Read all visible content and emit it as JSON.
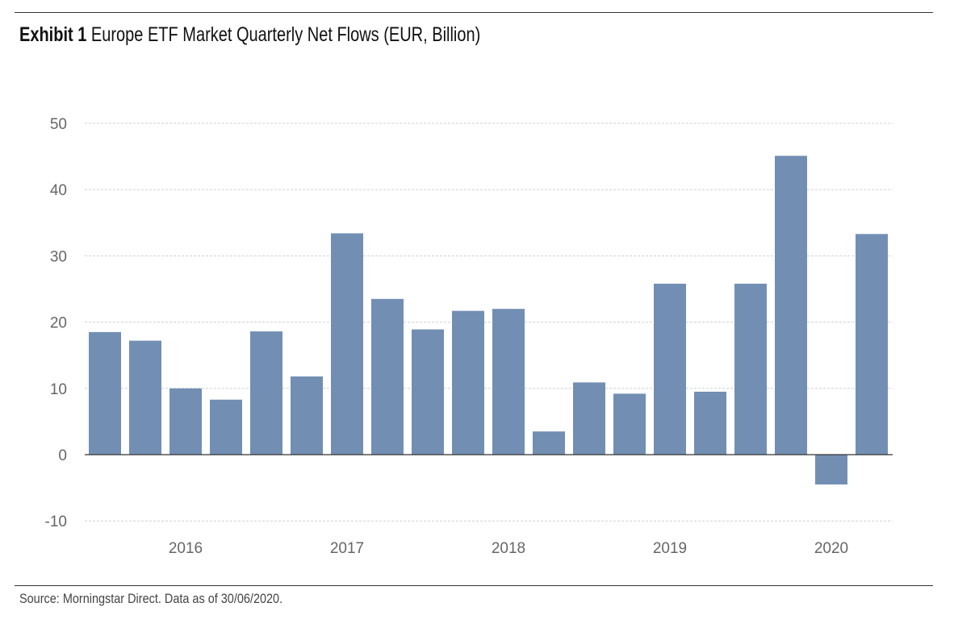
{
  "title": {
    "exhibit": "Exhibit 1",
    "text": "Europe ETF Market Quarterly Net Flows (EUR, Billion)"
  },
  "source": "Source: Morningstar Direct. Data as of 30/06/2020.",
  "chart_data": {
    "type": "bar",
    "title": "Europe ETF Market Quarterly Net Flows (EUR, Billion)",
    "xlabel": "",
    "ylabel": "",
    "ylim": [
      -10,
      50
    ],
    "yticks": [
      "-10",
      "0",
      "10",
      "20",
      "30",
      "40",
      "50"
    ],
    "grid": true,
    "bar_color": "#728fb3",
    "values": [
      18.5,
      17.2,
      10.0,
      8.3,
      18.6,
      11.8,
      33.4,
      23.5,
      18.9,
      21.7,
      22.0,
      3.5,
      10.9,
      9.2,
      25.8,
      9.5,
      25.8,
      45.1,
      -4.5,
      33.3
    ],
    "xticks": [
      {
        "label": "2016",
        "bar_index": 2
      },
      {
        "label": "2017",
        "bar_index": 6
      },
      {
        "label": "2018",
        "bar_index": 10
      },
      {
        "label": "2019",
        "bar_index": 14
      },
      {
        "label": "2020",
        "bar_index": 18
      }
    ]
  }
}
